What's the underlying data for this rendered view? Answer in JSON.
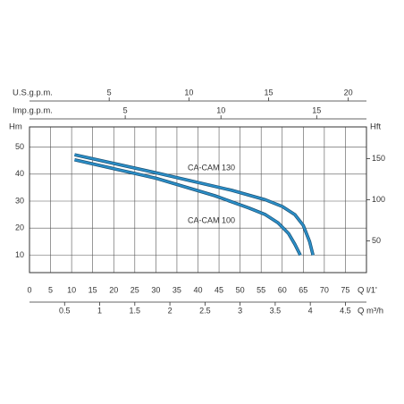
{
  "chart_data": {
    "type": "line",
    "x_label": "Q l/1'",
    "y_label": "Hm",
    "y2_label": "Hft",
    "xlim": [
      0,
      80
    ],
    "xticks": [
      0,
      5,
      10,
      15,
      20,
      25,
      30,
      35,
      40,
      45,
      50,
      55,
      60,
      65,
      70,
      75
    ],
    "ylim": [
      3.5,
      57.5
    ],
    "yticks": [
      10,
      20,
      30,
      40,
      50
    ],
    "y2lim": [
      11.5,
      188.7
    ],
    "y2ticks": [
      50,
      100,
      150
    ],
    "grid": true,
    "secondary_x_axes": [
      {
        "label": "U.S.g.p.m.",
        "position": "top",
        "lim": [
          0,
          21.14
        ],
        "ticks": [
          5,
          10,
          15,
          20
        ]
      },
      {
        "label": "Imp.g.p.m.",
        "position": "top",
        "lim": [
          0,
          17.6
        ],
        "ticks": [
          5,
          10,
          15
        ]
      },
      {
        "label": "Q m³/h",
        "position": "bottom",
        "lim": [
          0,
          4.8
        ],
        "ticks": [
          0.5,
          1,
          1.5,
          2,
          2.5,
          3,
          3.5,
          4,
          4.5
        ]
      }
    ],
    "series": [
      {
        "name": "CA-CAM 130",
        "color": "#2b8fc8",
        "x": [
          10.7,
          30,
          48,
          56,
          60,
          63,
          65,
          66.5,
          67.3
        ],
        "values": [
          47.2,
          40.5,
          34,
          30.5,
          28,
          25,
          21,
          15,
          10
        ]
      },
      {
        "name": "CA-CAM 100",
        "color": "#2b8fc8",
        "x": [
          10.7,
          30,
          44,
          52,
          56,
          59,
          61.5,
          63,
          64.3
        ],
        "values": [
          45.3,
          38.5,
          32,
          27.5,
          25,
          22,
          18,
          14,
          10
        ]
      }
    ]
  }
}
